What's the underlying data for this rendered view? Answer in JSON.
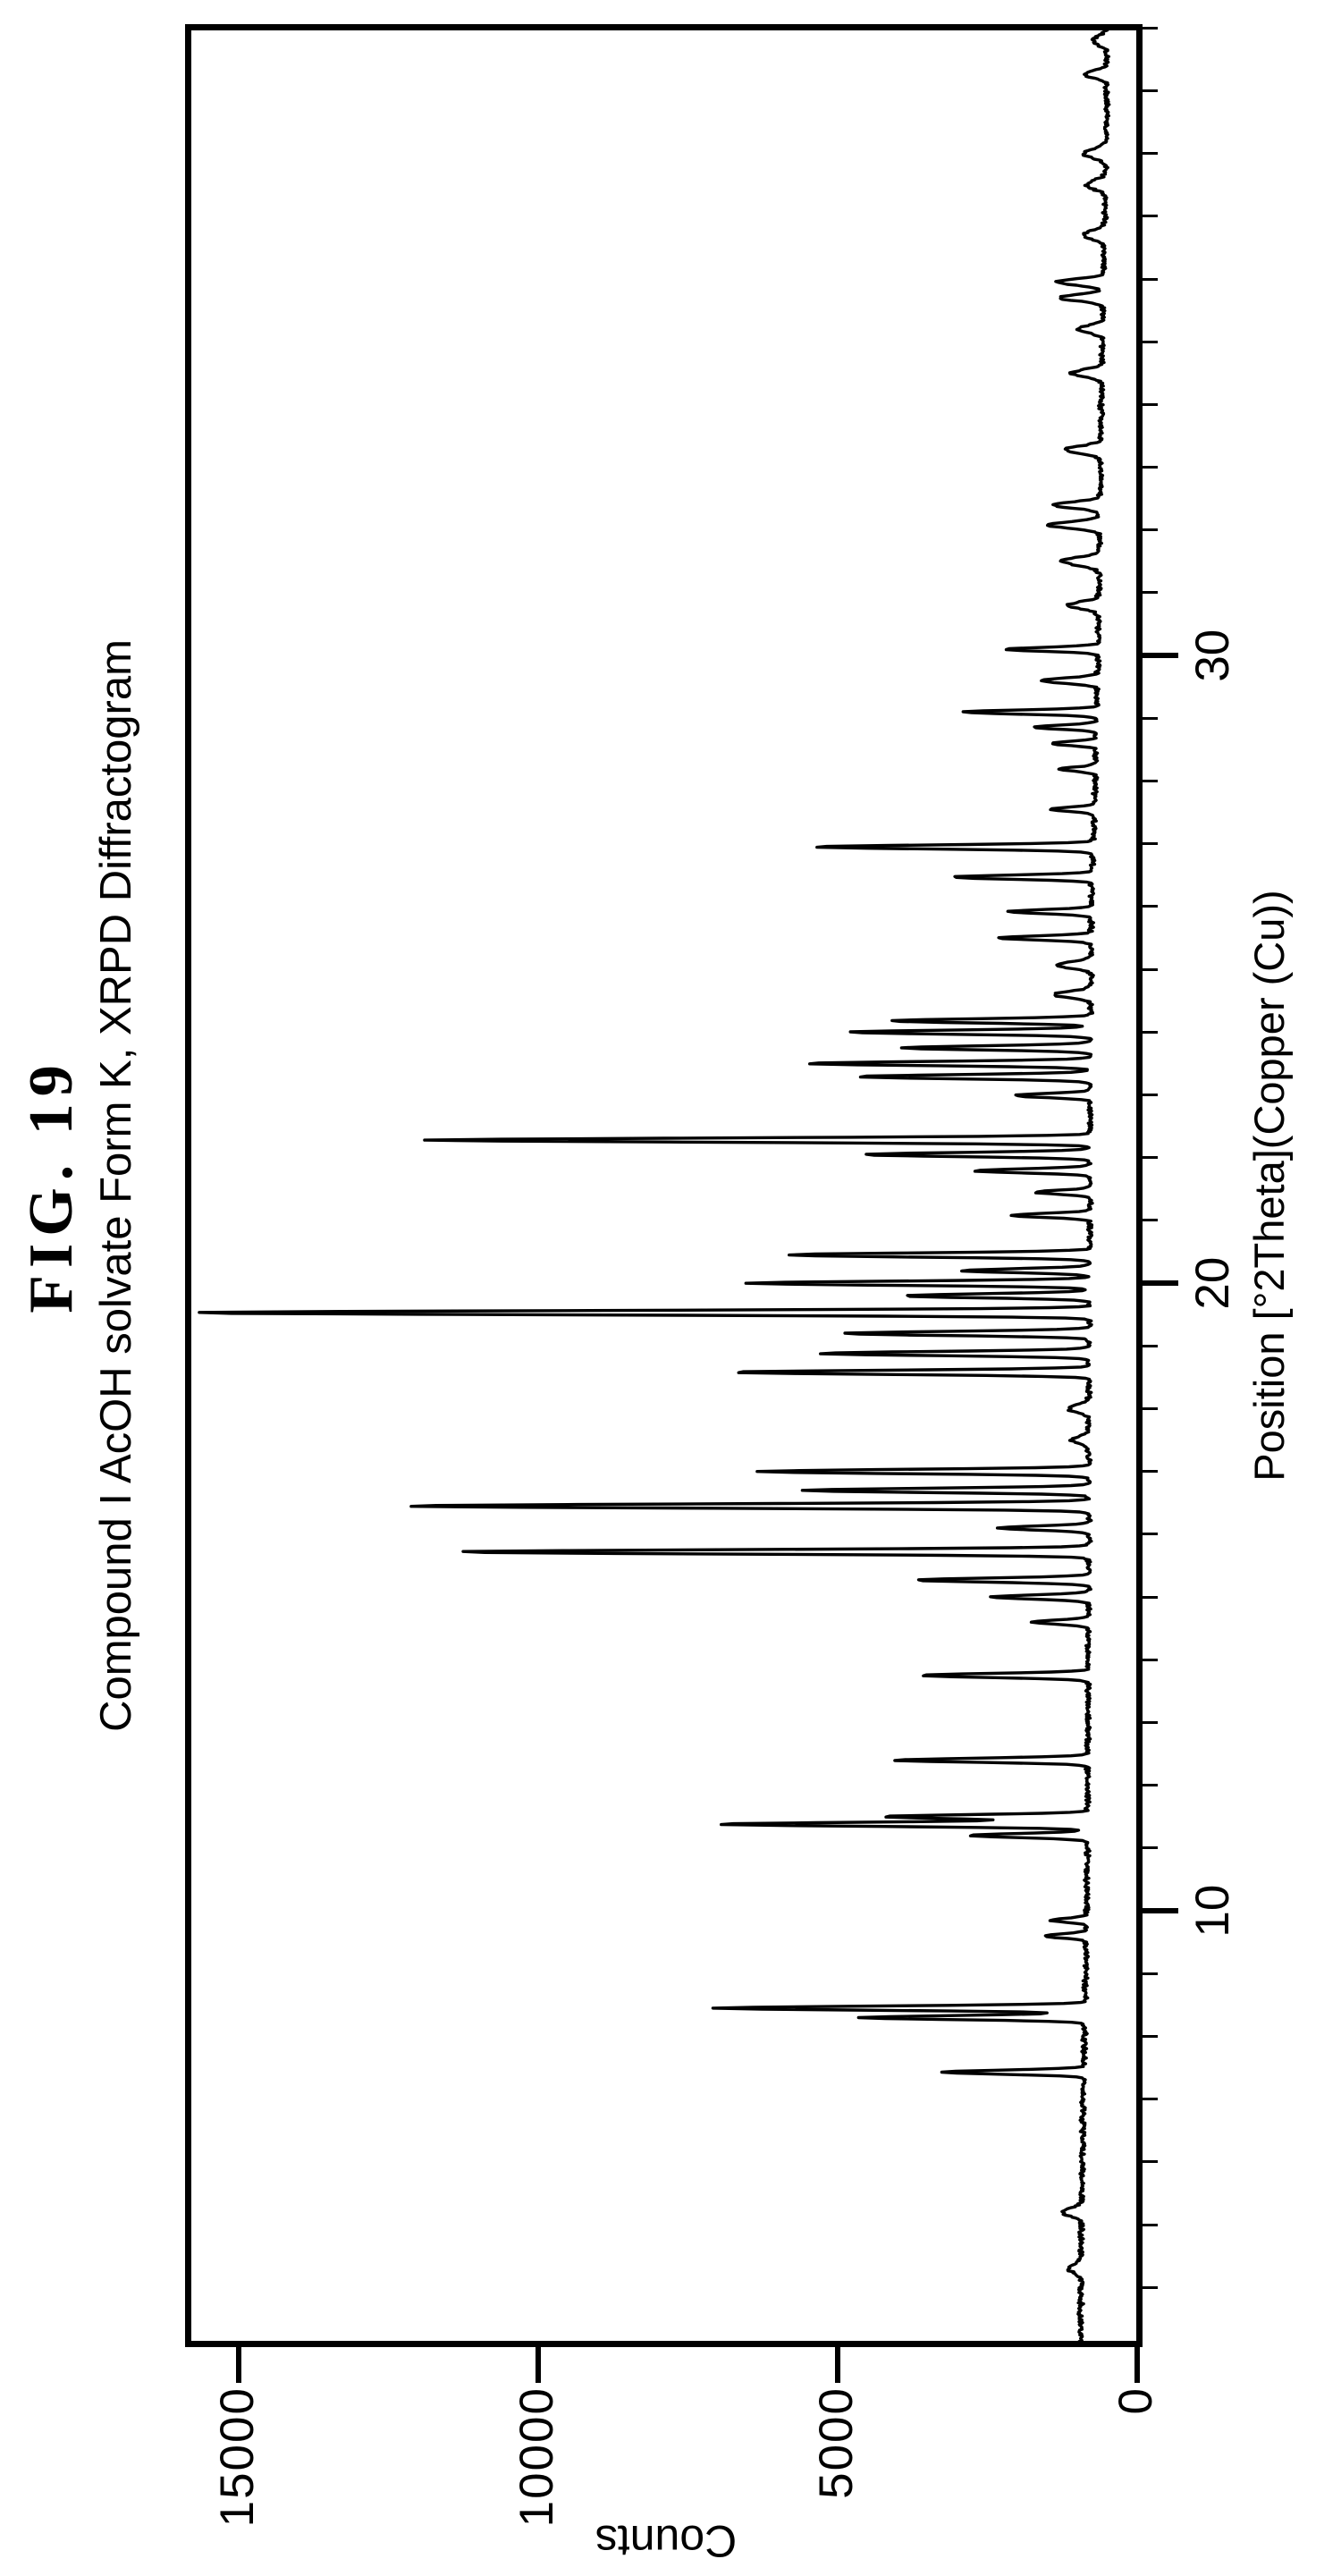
{
  "figure": {
    "label": "FIG. 19",
    "subtitle": "Compound I AcOH solvate Form K, XRPD Diffractogram"
  },
  "chart_data": {
    "type": "line",
    "title": "FIG. 19",
    "subtitle": "Compound I AcOH solvate Form K, XRPD Diffractogram",
    "xlabel": "Position [°2Theta](Copper (Cu))",
    "ylabel": "Counts",
    "xlim": [
      3.05,
      40.06
    ],
    "ylim": [
      0,
      15900
    ],
    "grid": false,
    "legend": "none",
    "line_color": "#000000",
    "x_ticks_labeled": [
      10,
      20,
      30
    ],
    "x_ticks_minor": [
      4,
      5,
      6,
      7,
      8,
      9,
      10,
      11,
      12,
      13,
      14,
      15,
      16,
      17,
      18,
      19,
      20,
      21,
      22,
      23,
      24,
      25,
      26,
      27,
      28,
      29,
      30,
      31,
      32,
      33,
      34,
      35,
      36,
      37,
      38,
      39,
      40
    ],
    "y_ticks": [
      0,
      5000,
      10000,
      15000
    ],
    "baseline_anchors": [
      [
        3.05,
        950
      ],
      [
        5,
        930
      ],
      [
        7,
        900
      ],
      [
        9,
        860
      ],
      [
        10,
        840
      ],
      [
        12,
        830
      ],
      [
        14,
        820
      ],
      [
        16,
        810
      ],
      [
        18,
        810
      ],
      [
        20,
        790
      ],
      [
        22,
        790
      ],
      [
        24,
        780
      ],
      [
        26,
        770
      ],
      [
        28,
        700
      ],
      [
        30,
        650
      ],
      [
        32,
        630
      ],
      [
        34,
        600
      ],
      [
        36,
        560
      ],
      [
        38,
        520
      ],
      [
        40.06,
        500
      ]
    ],
    "peak_sigma_default": 0.045,
    "peaks": [
      {
        "two_theta": 4.3,
        "counts": 1150,
        "sigma": 0.09
      },
      {
        "two_theta": 5.2,
        "counts": 1250,
        "sigma": 0.09
      },
      {
        "two_theta": 7.43,
        "counts": 3300
      },
      {
        "two_theta": 8.3,
        "counts": 4600
      },
      {
        "two_theta": 8.45,
        "counts": 7000
      },
      {
        "two_theta": 9.6,
        "counts": 1550
      },
      {
        "two_theta": 9.85,
        "counts": 1450
      },
      {
        "two_theta": 11.2,
        "counts": 2800
      },
      {
        "two_theta": 11.38,
        "counts": 7000
      },
      {
        "two_theta": 11.5,
        "counts": 4300
      },
      {
        "two_theta": 12.4,
        "counts": 4050
      },
      {
        "two_theta": 13.75,
        "counts": 3650
      },
      {
        "two_theta": 14.6,
        "counts": 1750
      },
      {
        "two_theta": 15.0,
        "counts": 2450
      },
      {
        "two_theta": 15.27,
        "counts": 3700
      },
      {
        "two_theta": 15.72,
        "counts": 11500
      },
      {
        "two_theta": 16.1,
        "counts": 2300
      },
      {
        "two_theta": 16.45,
        "counts": 12300
      },
      {
        "two_theta": 16.7,
        "counts": 5600
      },
      {
        "two_theta": 17.0,
        "counts": 6300
      },
      {
        "two_theta": 17.5,
        "counts": 1100,
        "sigma": 0.08
      },
      {
        "two_theta": 18.0,
        "counts": 1150,
        "sigma": 0.08
      },
      {
        "two_theta": 18.58,
        "counts": 6800
      },
      {
        "two_theta": 18.88,
        "counts": 5300
      },
      {
        "two_theta": 19.2,
        "counts": 4900
      },
      {
        "two_theta": 19.53,
        "counts": 15900
      },
      {
        "two_theta": 19.8,
        "counts": 3900
      },
      {
        "two_theta": 20.0,
        "counts": 6500
      },
      {
        "two_theta": 20.2,
        "counts": 2900
      },
      {
        "two_theta": 20.45,
        "counts": 5900
      },
      {
        "two_theta": 21.08,
        "counts": 2100
      },
      {
        "two_theta": 21.45,
        "counts": 1700
      },
      {
        "two_theta": 21.79,
        "counts": 2700
      },
      {
        "two_theta": 22.05,
        "counts": 4600
      },
      {
        "two_theta": 22.28,
        "counts": 11800
      },
      {
        "two_theta": 22.99,
        "counts": 2050
      },
      {
        "two_theta": 23.29,
        "counts": 4700
      },
      {
        "two_theta": 23.5,
        "counts": 5500
      },
      {
        "two_theta": 23.75,
        "counts": 3900
      },
      {
        "two_theta": 24.0,
        "counts": 4850
      },
      {
        "two_theta": 24.18,
        "counts": 4100
      },
      {
        "two_theta": 24.6,
        "counts": 1400,
        "sigma": 0.07
      },
      {
        "two_theta": 25.07,
        "counts": 1350,
        "sigma": 0.07
      },
      {
        "two_theta": 25.5,
        "counts": 2300
      },
      {
        "two_theta": 25.92,
        "counts": 2150
      },
      {
        "two_theta": 26.47,
        "counts": 3100
      },
      {
        "two_theta": 26.95,
        "counts": 5400
      },
      {
        "two_theta": 27.55,
        "counts": 1500
      },
      {
        "two_theta": 28.19,
        "counts": 1300
      },
      {
        "two_theta": 28.6,
        "counts": 1450
      },
      {
        "two_theta": 28.86,
        "counts": 1750
      },
      {
        "two_theta": 29.1,
        "counts": 2930
      },
      {
        "two_theta": 29.6,
        "counts": 1600,
        "sigma": 0.06
      },
      {
        "two_theta": 30.1,
        "counts": 2180
      },
      {
        "two_theta": 30.8,
        "counts": 1150,
        "sigma": 0.08
      },
      {
        "two_theta": 31.5,
        "counts": 1250,
        "sigma": 0.09
      },
      {
        "two_theta": 32.08,
        "counts": 1500,
        "sigma": 0.07
      },
      {
        "two_theta": 32.4,
        "counts": 1400,
        "sigma": 0.07
      },
      {
        "two_theta": 33.28,
        "counts": 1200,
        "sigma": 0.08
      },
      {
        "two_theta": 34.5,
        "counts": 1100,
        "sigma": 0.08
      },
      {
        "two_theta": 35.2,
        "counts": 1000,
        "sigma": 0.08
      },
      {
        "two_theta": 35.7,
        "counts": 1300,
        "sigma": 0.07
      },
      {
        "two_theta": 35.95,
        "counts": 1350,
        "sigma": 0.07
      },
      {
        "two_theta": 36.7,
        "counts": 900,
        "sigma": 0.1
      },
      {
        "two_theta": 37.5,
        "counts": 850,
        "sigma": 0.1
      },
      {
        "two_theta": 38.0,
        "counts": 900,
        "sigma": 0.1
      },
      {
        "two_theta": 39.26,
        "counts": 900,
        "sigma": 0.08
      },
      {
        "two_theta": 39.8,
        "counts": 750,
        "sigma": 0.1
      }
    ],
    "noise_seed": 7,
    "noise_base_amplitude": 30
  }
}
